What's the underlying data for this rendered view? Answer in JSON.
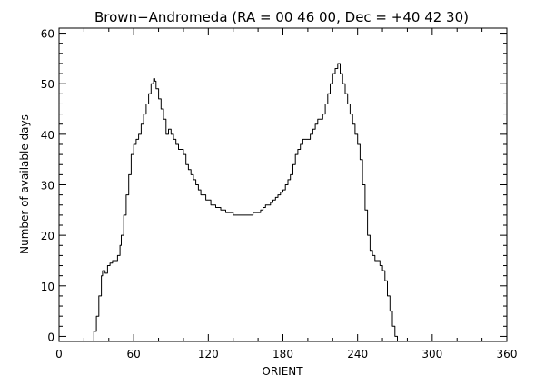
{
  "chart_data": {
    "type": "line",
    "title": "Brown−Andromeda (RA = 00 46 00, Dec = +40 42 30)",
    "xlabel": "ORIENT",
    "ylabel": "Number of available days",
    "xlim": [
      0,
      360
    ],
    "ylim": [
      -1,
      61
    ],
    "x_ticks": [
      0,
      60,
      120,
      180,
      240,
      300,
      360
    ],
    "x_tick_labels": [
      "0",
      "60",
      "120",
      "180",
      "240",
      "300",
      "360"
    ],
    "y_ticks": [
      0,
      10,
      20,
      30,
      40,
      50,
      60
    ],
    "y_tick_labels": [
      "0",
      "10",
      "20",
      "30",
      "40",
      "50",
      "60"
    ],
    "grid": false,
    "x": [
      0,
      27,
      28,
      30,
      32,
      34,
      35,
      37,
      39,
      41,
      43,
      45,
      47,
      49,
      50,
      52,
      54,
      56,
      58,
      60,
      62,
      64,
      66,
      68,
      70,
      72,
      74,
      76,
      77,
      78,
      80,
      82,
      84,
      86,
      88,
      90,
      92,
      94,
      96,
      98,
      100,
      102,
      104,
      106,
      108,
      110,
      112,
      114,
      116,
      118,
      120,
      122,
      124,
      126,
      128,
      130,
      132,
      134,
      136,
      138,
      140,
      142,
      144,
      146,
      148,
      150,
      152,
      154,
      156,
      158,
      160,
      162,
      164,
      166,
      168,
      170,
      172,
      174,
      176,
      178,
      180,
      182,
      184,
      186,
      188,
      190,
      192,
      194,
      196,
      198,
      200,
      202,
      204,
      206,
      208,
      210,
      212,
      214,
      216,
      218,
      220,
      222,
      224,
      226,
      228,
      230,
      232,
      234,
      236,
      238,
      240,
      242,
      244,
      246,
      248,
      250,
      252,
      254,
      256,
      258,
      260,
      262,
      264,
      266,
      268,
      270,
      272,
      274,
      276,
      278,
      280,
      282,
      360
    ],
    "y": [
      -1,
      -1,
      1,
      4,
      8,
      12,
      13,
      12.5,
      14,
      14.5,
      15,
      15,
      16,
      18,
      20,
      24,
      28,
      32,
      36,
      38,
      39,
      40,
      42,
      44,
      46,
      48,
      50,
      51,
      50.5,
      49,
      47,
      45,
      43,
      40,
      41,
      40,
      39,
      38,
      37,
      37,
      36,
      34,
      33,
      32,
      31,
      30,
      29,
      28,
      28,
      27,
      27,
      26,
      26,
      25.5,
      25.5,
      25,
      25,
      24.5,
      24.5,
      24.5,
      24,
      24,
      24,
      24,
      24,
      24,
      24,
      24,
      24.5,
      24.5,
      24.5,
      25,
      25.5,
      26,
      26,
      26.5,
      27,
      27.5,
      28,
      28.5,
      29,
      30,
      31,
      32,
      34,
      36,
      37,
      38,
      39,
      39,
      39,
      40,
      41,
      42,
      43,
      43,
      44,
      46,
      48,
      50,
      52,
      53,
      54,
      52,
      50,
      48,
      46,
      44,
      42,
      40,
      38,
      35,
      30,
      25,
      20,
      17,
      16,
      15,
      15,
      14,
      13,
      11,
      8,
      5,
      2,
      0,
      -1,
      -1,
      -1,
      -1,
      -1,
      -1,
      -1
    ]
  }
}
